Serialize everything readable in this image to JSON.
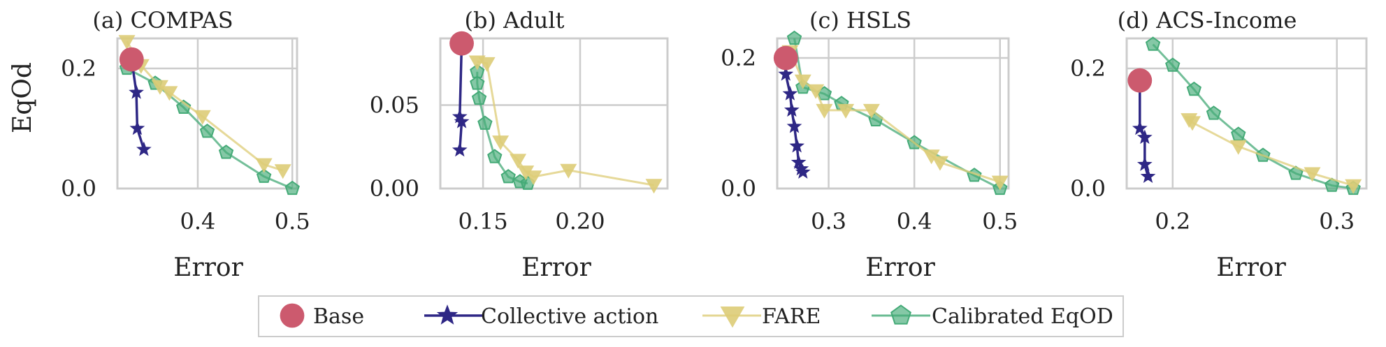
{
  "chart_data": [
    {
      "type": "line",
      "title": "(a) COMPAS",
      "xlabel": "Error",
      "ylabel": "EqOd",
      "xlim": [
        0.315,
        0.505
      ],
      "ylim": [
        0.0,
        0.25
      ],
      "xticks": [
        0.4,
        0.5
      ],
      "xtick_labels": [
        "0.4",
        "0.5"
      ],
      "yticks": [
        0.0,
        0.2
      ],
      "ytick_labels": [
        "0.0",
        "0.2"
      ],
      "grid": true,
      "series": [
        {
          "name": "Base",
          "marker": "circle",
          "color": "#cc5a6e",
          "points": [
            [
              0.33,
              0.215
            ]
          ]
        },
        {
          "name": "Collective action",
          "marker": "star",
          "color": "#2e2785",
          "points": [
            [
              0.33,
              0.215
            ],
            [
              0.335,
              0.16
            ],
            [
              0.336,
              0.1
            ],
            [
              0.343,
              0.065
            ]
          ]
        },
        {
          "name": "FARE",
          "marker": "triangle-down",
          "color": "#ddcc77",
          "points": [
            [
              0.325,
              0.245
            ],
            [
              0.34,
              0.205
            ],
            [
              0.36,
              0.17
            ],
            [
              0.37,
              0.16
            ],
            [
              0.405,
              0.12
            ],
            [
              0.47,
              0.04
            ],
            [
              0.49,
              0.03
            ]
          ]
        },
        {
          "name": "Calibrated EqOD",
          "marker": "pentagon",
          "color": "#44aa77",
          "points": [
            [
              0.325,
              0.2
            ],
            [
              0.355,
              0.175
            ],
            [
              0.385,
              0.135
            ],
            [
              0.41,
              0.095
            ],
            [
              0.43,
              0.06
            ],
            [
              0.47,
              0.02
            ],
            [
              0.5,
              0.0
            ]
          ]
        }
      ]
    },
    {
      "type": "line",
      "title": "(b) Adult",
      "xlabel": "Error",
      "ylabel": "",
      "xlim": [
        0.128,
        0.245
      ],
      "ylim": [
        0.0,
        0.09
      ],
      "xticks": [
        0.15,
        0.2
      ],
      "xtick_labels": [
        "0.15",
        "0.20"
      ],
      "yticks": [
        0.0,
        0.05
      ],
      "ytick_labels": [
        "0.00",
        "0.05"
      ],
      "grid": true,
      "series": [
        {
          "name": "Base",
          "marker": "circle",
          "color": "#cc5a6e",
          "points": [
            [
              0.139,
              0.087
            ]
          ]
        },
        {
          "name": "Collective action",
          "marker": "star",
          "color": "#2e2785",
          "points": [
            [
              0.139,
              0.087
            ],
            [
              0.138,
              0.043
            ],
            [
              0.139,
              0.04
            ],
            [
              0.138,
              0.023
            ]
          ]
        },
        {
          "name": "FARE",
          "marker": "triangle-down",
          "color": "#ddcc77",
          "points": [
            [
              0.147,
              0.076
            ],
            [
              0.152,
              0.075
            ],
            [
              0.159,
              0.028
            ],
            [
              0.168,
              0.017
            ],
            [
              0.172,
              0.01
            ],
            [
              0.176,
              0.007
            ],
            [
              0.194,
              0.011
            ],
            [
              0.238,
              0.002
            ]
          ]
        },
        {
          "name": "Calibrated EqOD",
          "marker": "pentagon",
          "color": "#44aa77",
          "points": [
            [
              0.147,
              0.07
            ],
            [
              0.147,
              0.063
            ],
            [
              0.148,
              0.054
            ],
            [
              0.151,
              0.039
            ],
            [
              0.156,
              0.019
            ],
            [
              0.163,
              0.007
            ],
            [
              0.169,
              0.004
            ],
            [
              0.173,
              0.003
            ]
          ]
        }
      ]
    },
    {
      "type": "line",
      "title": "(c) HSLS",
      "xlabel": "Error",
      "ylabel": "",
      "xlim": [
        0.24,
        0.51
      ],
      "ylim": [
        0.0,
        0.23
      ],
      "xticks": [
        0.3,
        0.4,
        0.5
      ],
      "xtick_labels": [
        "0.3",
        "0.4",
        "0.5"
      ],
      "yticks": [
        0.0,
        0.2
      ],
      "ytick_labels": [
        "0.0",
        "0.2"
      ],
      "grid": true,
      "series": [
        {
          "name": "Base",
          "marker": "circle",
          "color": "#cc5a6e",
          "points": [
            [
              0.25,
              0.2
            ]
          ]
        },
        {
          "name": "Collective action",
          "marker": "star",
          "color": "#2e2785",
          "points": [
            [
              0.25,
              0.2
            ],
            [
              0.25,
              0.175
            ],
            [
              0.255,
              0.145
            ],
            [
              0.257,
              0.12
            ],
            [
              0.26,
              0.095
            ],
            [
              0.263,
              0.065
            ],
            [
              0.265,
              0.04
            ],
            [
              0.268,
              0.03
            ],
            [
              0.27,
              0.025
            ]
          ]
        },
        {
          "name": "FARE",
          "marker": "triangle-down",
          "color": "#ddcc77",
          "points": [
            [
              0.255,
              0.21
            ],
            [
              0.27,
              0.165
            ],
            [
              0.285,
              0.15
            ],
            [
              0.295,
              0.12
            ],
            [
              0.32,
              0.12
            ],
            [
              0.35,
              0.12
            ],
            [
              0.42,
              0.05
            ],
            [
              0.43,
              0.04
            ],
            [
              0.5,
              0.01
            ]
          ]
        },
        {
          "name": "Calibrated EqOD",
          "marker": "pentagon",
          "color": "#44aa77",
          "points": [
            [
              0.26,
              0.23
            ],
            [
              0.27,
              0.155
            ],
            [
              0.295,
              0.145
            ],
            [
              0.315,
              0.13
            ],
            [
              0.355,
              0.105
            ],
            [
              0.4,
              0.07
            ],
            [
              0.47,
              0.02
            ],
            [
              0.5,
              0.0
            ]
          ]
        }
      ]
    },
    {
      "type": "line",
      "title": "(d) ACS-Income",
      "xlabel": "Error",
      "ylabel": "",
      "xlim": [
        0.172,
        0.318
      ],
      "ylim": [
        0.0,
        0.25
      ],
      "xticks": [
        0.2,
        0.3
      ],
      "xtick_labels": [
        "0.2",
        "0.3"
      ],
      "yticks": [
        0.0,
        0.2
      ],
      "ytick_labels": [
        "0.0",
        "0.2"
      ],
      "grid": true,
      "series": [
        {
          "name": "Base",
          "marker": "circle",
          "color": "#cc5a6e",
          "points": [
            [
              0.18,
              0.18
            ]
          ]
        },
        {
          "name": "Collective action",
          "marker": "star",
          "color": "#2e2785",
          "points": [
            [
              0.18,
              0.18
            ],
            [
              0.18,
              0.1
            ],
            [
              0.183,
              0.085
            ],
            [
              0.183,
              0.04
            ],
            [
              0.185,
              0.02
            ]
          ]
        },
        {
          "name": "FARE",
          "marker": "triangle-down",
          "color": "#ddcc77",
          "points": [
            [
              0.21,
              0.115
            ],
            [
              0.212,
              0.11
            ],
            [
              0.24,
              0.07
            ],
            [
              0.285,
              0.025
            ],
            [
              0.31,
              0.005
            ]
          ]
        },
        {
          "name": "Calibrated EqOD",
          "marker": "pentagon",
          "color": "#44aa77",
          "points": [
            [
              0.188,
              0.24
            ],
            [
              0.2,
              0.205
            ],
            [
              0.213,
              0.165
            ],
            [
              0.225,
              0.125
            ],
            [
              0.24,
              0.09
            ],
            [
              0.255,
              0.055
            ],
            [
              0.275,
              0.025
            ],
            [
              0.297,
              0.005
            ],
            [
              0.31,
              0.0
            ]
          ]
        }
      ]
    }
  ],
  "legend": {
    "placement": "bottom-center",
    "entries": [
      {
        "label": "Base",
        "marker": "circle",
        "color": "#cc5a6e"
      },
      {
        "label": "Collective action",
        "marker": "star",
        "color": "#2e2785"
      },
      {
        "label": "FARE",
        "marker": "triangle-down",
        "color": "#ddcc77"
      },
      {
        "label": "Calibrated EqOD",
        "marker": "pentagon",
        "color": "#44aa77"
      }
    ]
  },
  "style": {
    "grid_color": "#cccccc",
    "frame_color": "#cccccc"
  }
}
